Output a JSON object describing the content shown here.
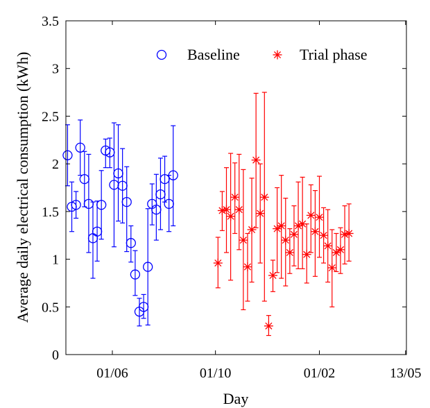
{
  "chart_data": {
    "type": "scatter",
    "xlabel": "Day",
    "ylabel": "Average daily electrical consumption (kWh)",
    "ylim": [
      0,
      3.5
    ],
    "yticks": [
      0,
      0.5,
      1,
      1.5,
      2,
      2.5,
      3,
      3.5
    ],
    "ytick_labels": [
      "0",
      "0.5",
      "1",
      "1.5",
      "2",
      "2.5",
      "3",
      "3.5"
    ],
    "xticks": [
      {
        "label": "01/06",
        "day": 0
      },
      {
        "label": "01/10",
        "day": 122
      },
      {
        "label": "01/02",
        "day": 245
      },
      {
        "label": "13/05",
        "day": 347
      }
    ],
    "xlim": [
      -55,
      348
    ],
    "grid": false,
    "legend_position": "top-right",
    "series": [
      {
        "name": "Baseline",
        "marker": "circle",
        "color": "#0000ff",
        "points": [
          {
            "day": -53,
            "y": 2.09,
            "lo": 1.77,
            "hi": 2.41
          },
          {
            "day": -48,
            "y": 1.55,
            "lo": 1.29,
            "hi": 1.81
          },
          {
            "day": -43,
            "y": 1.57,
            "lo": 1.43,
            "hi": 1.71
          },
          {
            "day": -38,
            "y": 2.17,
            "lo": 1.88,
            "hi": 2.46
          },
          {
            "day": -33,
            "y": 1.84,
            "lo": 1.55,
            "hi": 2.13
          },
          {
            "day": -28,
            "y": 1.58,
            "lo": 1.07,
            "hi": 2.1
          },
          {
            "day": -23,
            "y": 1.22,
            "lo": 0.8,
            "hi": 1.6
          },
          {
            "day": -18,
            "y": 1.29,
            "lo": 0.98,
            "hi": 1.61
          },
          {
            "day": -13,
            "y": 1.57,
            "lo": 1.21,
            "hi": 1.93
          },
          {
            "day": -8,
            "y": 2.14,
            "lo": 1.96,
            "hi": 2.26
          },
          {
            "day": -3,
            "y": 2.12,
            "lo": 1.96,
            "hi": 2.27
          },
          {
            "day": 2,
            "y": 1.78,
            "lo": 1.13,
            "hi": 2.43
          },
          {
            "day": 7,
            "y": 1.9,
            "lo": 1.4,
            "hi": 2.41
          },
          {
            "day": 12,
            "y": 1.77,
            "lo": 1.38,
            "hi": 2.16
          },
          {
            "day": 17,
            "y": 1.6,
            "lo": 1.08,
            "hi": 1.97
          },
          {
            "day": 22,
            "y": 1.17,
            "lo": 0.97,
            "hi": 1.35
          },
          {
            "day": 27,
            "y": 0.84,
            "lo": 0.62,
            "hi": 1.09
          },
          {
            "day": 32,
            "y": 0.45,
            "lo": 0.3,
            "hi": 0.59
          },
          {
            "day": 37,
            "y": 0.5,
            "lo": 0.38,
            "hi": 0.63
          },
          {
            "day": 42,
            "y": 0.92,
            "lo": 0.31,
            "hi": 1.53
          },
          {
            "day": 47,
            "y": 1.58,
            "lo": 1.36,
            "hi": 1.79
          },
          {
            "day": 52,
            "y": 1.52,
            "lo": 1.2,
            "hi": 1.89
          },
          {
            "day": 57,
            "y": 1.68,
            "lo": 1.31,
            "hi": 2.06
          },
          {
            "day": 62,
            "y": 1.84,
            "lo": 1.6,
            "hi": 2.08
          },
          {
            "day": 67,
            "y": 1.58,
            "lo": 1.29,
            "hi": 1.88
          },
          {
            "day": 72,
            "y": 1.88,
            "lo": 1.35,
            "hi": 2.4
          }
        ]
      },
      {
        "name": "Trial phase",
        "marker": "asterisk",
        "color": "#ff0000",
        "points": [
          {
            "day": 125,
            "y": 0.96,
            "lo": 0.7,
            "hi": 1.23
          },
          {
            "day": 130,
            "y": 1.51,
            "lo": 1.3,
            "hi": 1.71
          },
          {
            "day": 135,
            "y": 1.52,
            "lo": 1.07,
            "hi": 1.96
          },
          {
            "day": 140,
            "y": 1.45,
            "lo": 0.78,
            "hi": 2.11
          },
          {
            "day": 145,
            "y": 1.65,
            "lo": 1.27,
            "hi": 2.01
          },
          {
            "day": 150,
            "y": 1.52,
            "lo": 1.1,
            "hi": 2.1
          },
          {
            "day": 155,
            "y": 1.2,
            "lo": 0.47,
            "hi": 1.94
          },
          {
            "day": 160,
            "y": 0.92,
            "lo": 0.56,
            "hi": 1.27
          },
          {
            "day": 165,
            "y": 1.31,
            "lo": 0.76,
            "hi": 1.85
          },
          {
            "day": 170,
            "y": 2.04,
            "lo": 1.33,
            "hi": 2.74
          },
          {
            "day": 175,
            "y": 1.48,
            "lo": 0.96,
            "hi": 2.0
          },
          {
            "day": 180,
            "y": 1.65,
            "lo": 0.56,
            "hi": 2.75
          },
          {
            "day": 185,
            "y": 0.3,
            "lo": 0.2,
            "hi": 0.41
          },
          {
            "day": 190,
            "y": 0.83,
            "lo": 0.66,
            "hi": 0.99
          },
          {
            "day": 195,
            "y": 1.32,
            "lo": 0.86,
            "hi": 1.75
          },
          {
            "day": 200,
            "y": 1.35,
            "lo": 0.8,
            "hi": 1.88
          },
          {
            "day": 205,
            "y": 1.2,
            "lo": 0.72,
            "hi": 1.64
          },
          {
            "day": 210,
            "y": 1.07,
            "lo": 0.85,
            "hi": 1.32
          },
          {
            "day": 215,
            "y": 1.26,
            "lo": 0.93,
            "hi": 1.56
          },
          {
            "day": 220,
            "y": 1.35,
            "lo": 0.9,
            "hi": 1.81
          },
          {
            "day": 225,
            "y": 1.37,
            "lo": 0.9,
            "hi": 1.86
          },
          {
            "day": 230,
            "y": 1.05,
            "lo": 0.75,
            "hi": 1.37
          },
          {
            "day": 235,
            "y": 1.46,
            "lo": 1.07,
            "hi": 1.78
          },
          {
            "day": 240,
            "y": 1.29,
            "lo": 0.82,
            "hi": 1.72
          },
          {
            "day": 245,
            "y": 1.44,
            "lo": 1.02,
            "hi": 1.87
          },
          {
            "day": 250,
            "y": 1.25,
            "lo": 0.96,
            "hi": 1.54
          },
          {
            "day": 255,
            "y": 1.14,
            "lo": 0.76,
            "hi": 1.52
          },
          {
            "day": 260,
            "y": 0.91,
            "lo": 0.5,
            "hi": 1.31
          },
          {
            "day": 265,
            "y": 1.07,
            "lo": 0.87,
            "hi": 1.27
          },
          {
            "day": 270,
            "y": 1.1,
            "lo": 0.85,
            "hi": 1.33
          },
          {
            "day": 275,
            "y": 1.26,
            "lo": 0.95,
            "hi": 1.56
          },
          {
            "day": 280,
            "y": 1.27,
            "lo": 0.98,
            "hi": 1.58
          }
        ]
      }
    ]
  }
}
